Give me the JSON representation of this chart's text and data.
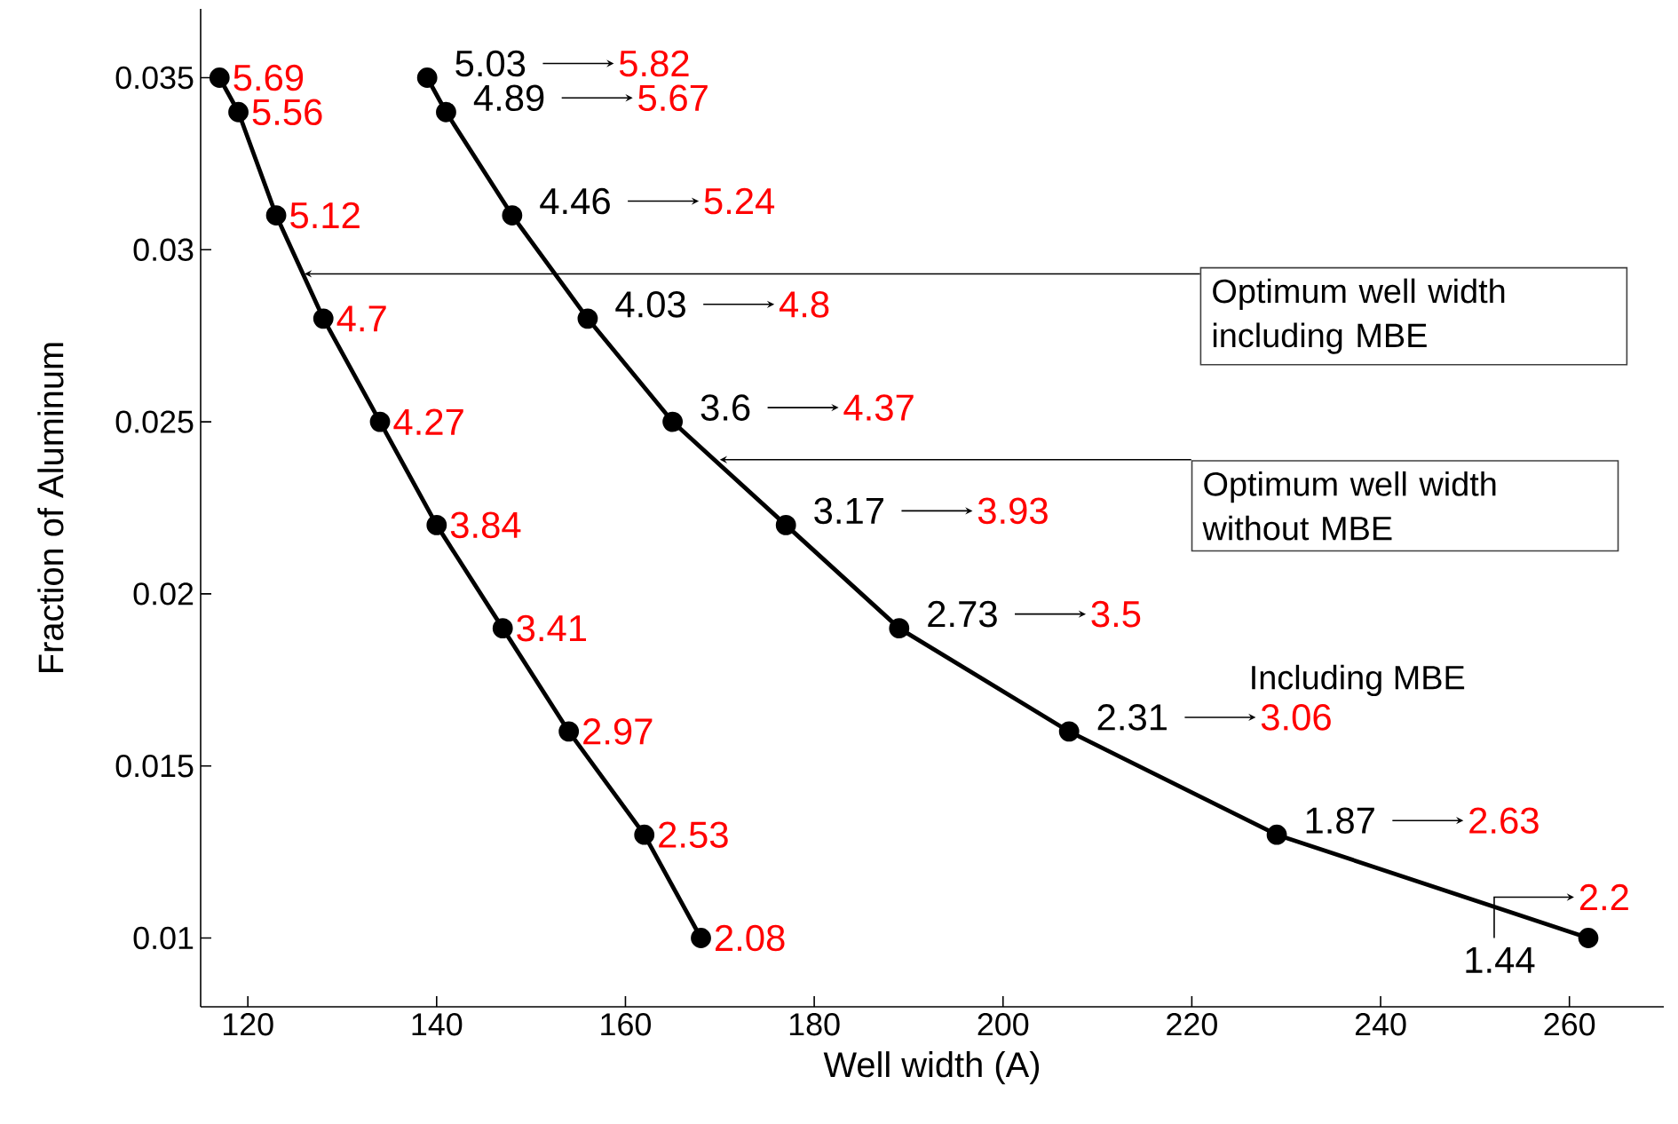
{
  "chart_data": {
    "type": "line",
    "xlabel": "Well width (A)",
    "ylabel": "Fraction of Aluminum",
    "xlim": [
      115,
      270
    ],
    "ylim": [
      0.008,
      0.037
    ],
    "xticks": [
      120,
      140,
      160,
      180,
      200,
      220,
      240,
      260
    ],
    "yticks": [
      0.01,
      0.015,
      0.02,
      0.025,
      0.03,
      0.035
    ],
    "marker": "circle",
    "line_style": "solid",
    "series": [
      {
        "color": "#000000",
        "x": [
          117,
          119,
          123,
          128,
          134,
          140,
          147,
          154,
          162,
          168
        ],
        "values": [
          0.035,
          0.034,
          0.031,
          0.028,
          0.025,
          0.022,
          0.019,
          0.016,
          0.013,
          0.01
        ]
      },
      {
        "color": "#000000",
        "x": [
          139,
          141,
          148,
          156,
          165,
          177,
          189,
          207,
          229,
          262
        ],
        "values": [
          0.035,
          0.034,
          0.031,
          0.028,
          0.025,
          0.022,
          0.019,
          0.016,
          0.013,
          0.01
        ]
      }
    ],
    "annotations": [
      {
        "text": "5.69",
        "x": 117,
        "y": 0.035
      },
      {
        "text": "5.56",
        "x": 119,
        "y": 0.034
      },
      {
        "text": "5.12",
        "x": 123,
        "y": 0.031
      },
      {
        "text": "4.7",
        "x": 128,
        "y": 0.028
      },
      {
        "text": "4.27",
        "x": 134,
        "y": 0.025
      },
      {
        "text": "3.84",
        "x": 140,
        "y": 0.022
      },
      {
        "text": "3.41",
        "x": 147,
        "y": 0.019
      },
      {
        "text": "2.97",
        "x": 154,
        "y": 0.016
      },
      {
        "text": "2.53",
        "x": 162,
        "y": 0.013
      },
      {
        "text": "2.08",
        "x": 168,
        "y": 0.01
      },
      {
        "text": "5.03",
        "x": 139,
        "y": 0.035
      },
      {
        "text": "4.89",
        "x": 141,
        "y": 0.034
      },
      {
        "text": "4.46",
        "x": 148,
        "y": 0.031
      },
      {
        "text": "4.03",
        "x": 156,
        "y": 0.028
      },
      {
        "text": "3.6",
        "x": 165,
        "y": 0.025
      },
      {
        "text": "3.17",
        "x": 177,
        "y": 0.022
      },
      {
        "text": "2.73",
        "x": 189,
        "y": 0.019
      },
      {
        "text": "2.31",
        "x": 207,
        "y": 0.016
      },
      {
        "text": "1.87",
        "x": 229,
        "y": 0.013
      },
      {
        "text": "1.44",
        "x": 262,
        "y": 0.01
      },
      {
        "text": "Optimum well width including MBE",
        "x": 126,
        "y": 0.0293
      },
      {
        "text": "Optimum well width without MBE",
        "x": 170,
        "y": 0.0239
      },
      "5.82",
      "5.67",
      "5.24",
      "4.8",
      "4.37",
      "3.93",
      "3.5",
      "3.06",
      "2.63",
      "2.2",
      "Including MBE"
    ]
  }
}
